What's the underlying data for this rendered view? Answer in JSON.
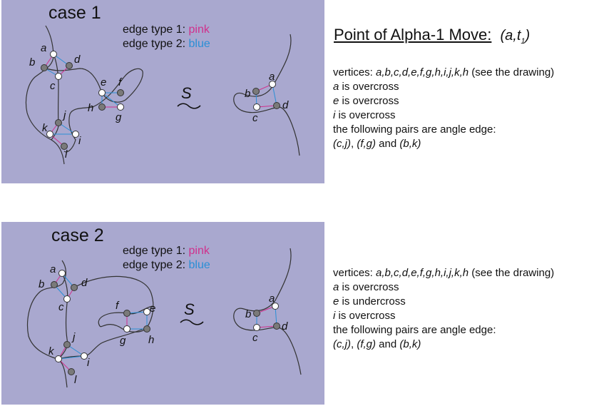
{
  "header": {
    "title": "Point of Alpha-1 Move:",
    "point_base": "a,t",
    "point_sub": "1"
  },
  "cases": [
    {
      "title": "case 1",
      "legend": {
        "line1_prefix": "edge type 1:",
        "line1_color": "pink",
        "line2_prefix": "edge type 2:",
        "line2_color": "blue"
      },
      "labels": {
        "a": "a",
        "b": "b",
        "c": "c",
        "d": "d",
        "e": "e",
        "f": "f",
        "g": "g",
        "h": "h",
        "i": "i",
        "j": "j",
        "k": "k",
        "l": "l"
      },
      "right_labels": {
        "a": "a",
        "b": "b",
        "c": "c",
        "d": "d"
      },
      "sim_symbol": "S",
      "description": {
        "vertices_prefix": "vertices: ",
        "vertices_list": "a,b,c,d,e,f,g,h,i,j,k,h",
        "vertices_suffix": " (see the drawing)",
        "line2_var": "a",
        "line2_text": " is overcross",
        "line3_var": "e",
        "line3_text": " is overcross",
        "line4_var": "i",
        "line4_text": " is overcross",
        "line5": "the following pairs are angle edge:",
        "pair1": "(c,j)",
        "sep1": ", ",
        "pair2": "(f,g)",
        "sep2": " and ",
        "pair3": "(b,k)"
      }
    },
    {
      "title": "case 2",
      "legend": {
        "line1_prefix": "edge type 1:",
        "line1_color": "pink",
        "line2_prefix": "edge type 2:",
        "line2_color": "blue"
      },
      "labels": {
        "a": "a",
        "b": "b",
        "c": "c",
        "d": "d",
        "e": "e",
        "f": "f",
        "g": "g",
        "h": "h",
        "i": "i",
        "j": "j",
        "k": "k",
        "l": "l"
      },
      "right_labels": {
        "a": "a",
        "b": "b",
        "c": "c",
        "d": "d"
      },
      "sim_symbol": "S",
      "description": {
        "vertices_prefix": "vertices: ",
        "vertices_list": "a,b,c,d,e,f,g,h,i,j,k,h",
        "vertices_suffix": " (see the drawing)",
        "line2_var": "a",
        "line2_text": " is overcross",
        "line3_var": "e",
        "line3_text": " is undercross",
        "line4_var": "i",
        "line4_text": " is overcross",
        "line5": "the following pairs are angle edge:",
        "pair1": "(c,j)",
        "sep1": ", ",
        "pair2": "(f,g)",
        "sep2": " and ",
        "pair3": "(b,k)"
      }
    }
  ],
  "colors": {
    "panel_bg": "#a9a8cf",
    "pink_edge": "#d0308c",
    "blue_edge": "#2a8fd6",
    "white_vertex": "#ffffff",
    "grey_vertex": "#7a7a7a"
  }
}
